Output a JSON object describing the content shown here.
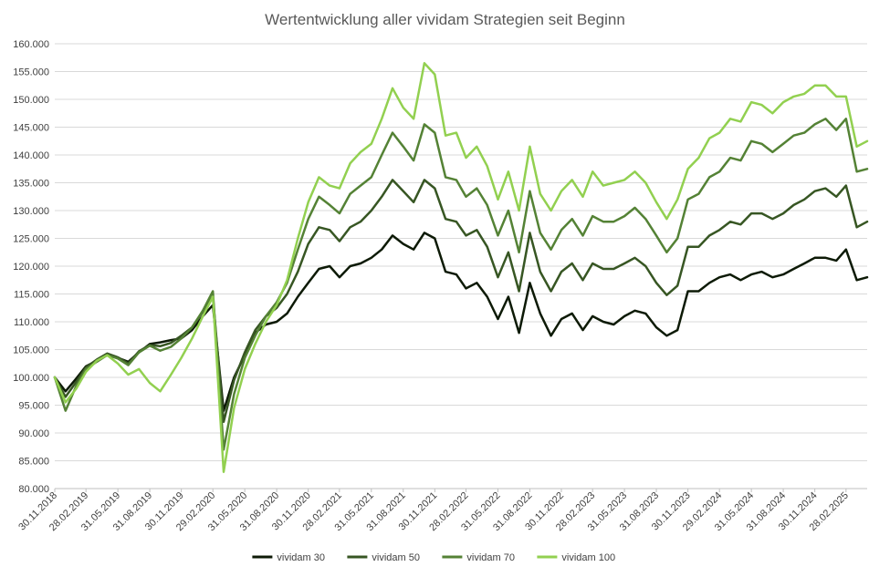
{
  "chart_data": {
    "type": "line",
    "title": "Wertentwicklung aller vividam Strategien seit Beginn",
    "xlabel": "",
    "ylabel": "",
    "ylim": [
      80000,
      160000
    ],
    "y_ticks": [
      "80.000",
      "85.000",
      "90.000",
      "95.000",
      "100.000",
      "105.000",
      "110.000",
      "115.000",
      "120.000",
      "125.000",
      "130.000",
      "135.000",
      "140.000",
      "145.000",
      "150.000",
      "155.000",
      "160.000"
    ],
    "x_ticks": [
      "30.11.2018",
      "28.02.2019",
      "31.05.2019",
      "31.08.2019",
      "30.11.2019",
      "29.02.2020",
      "31.05.2020",
      "31.08.2020",
      "30.11.2020",
      "28.02.2021",
      "31.05.2021",
      "31.08.2021",
      "30.11.2021",
      "28.02.2022",
      "31.05.2022",
      "31.08.2022",
      "30.11.2022",
      "28.02.2023",
      "31.05.2023",
      "31.08.2023",
      "30.11.2023",
      "29.02.2024",
      "31.05.2024",
      "31.08.2024",
      "30.11.2024",
      "28.02.2025"
    ],
    "x": [
      "30.11.2018",
      "31.12.2018",
      "31.01.2019",
      "28.02.2019",
      "31.03.2019",
      "30.04.2019",
      "31.05.2019",
      "30.06.2019",
      "31.07.2019",
      "31.08.2019",
      "30.09.2019",
      "31.10.2019",
      "30.11.2019",
      "31.12.2019",
      "31.01.2020",
      "29.02.2020",
      "31.03.2020",
      "30.04.2020",
      "31.05.2020",
      "30.06.2020",
      "31.07.2020",
      "31.08.2020",
      "30.09.2020",
      "31.10.2020",
      "30.11.2020",
      "31.12.2020",
      "31.01.2021",
      "28.02.2021",
      "31.03.2021",
      "30.04.2021",
      "31.05.2021",
      "30.06.2021",
      "31.07.2021",
      "31.08.2021",
      "30.09.2021",
      "31.10.2021",
      "30.11.2021",
      "31.12.2021",
      "31.01.2022",
      "28.02.2022",
      "31.03.2022",
      "30.04.2022",
      "31.05.2022",
      "30.06.2022",
      "31.07.2022",
      "31.08.2022",
      "30.09.2022",
      "31.10.2022",
      "30.11.2022",
      "31.12.2022",
      "31.01.2023",
      "28.02.2023",
      "31.03.2023",
      "30.04.2023",
      "31.05.2023",
      "30.06.2023",
      "31.07.2023",
      "31.08.2023",
      "30.09.2023",
      "31.10.2023",
      "30.11.2023",
      "31.12.2023",
      "31.01.2024",
      "29.02.2024",
      "31.03.2024",
      "30.04.2024",
      "31.05.2024",
      "30.06.2024",
      "31.07.2024",
      "31.08.2024",
      "30.09.2024",
      "31.10.2024",
      "30.11.2024",
      "31.12.2024",
      "31.01.2025",
      "28.02.2025",
      "31.03.2025",
      "30.04.2025"
    ],
    "series": [
      {
        "name": "vividam 30",
        "color": "#0d1a06",
        "values": [
          100000,
          97500,
          99800,
          102000,
          103000,
          104000,
          103500,
          102800,
          104500,
          106000,
          106300,
          106700,
          107000,
          108500,
          111000,
          113000,
          94000,
          100000,
          104000,
          108000,
          109500,
          110000,
          111500,
          114500,
          117000,
          119500,
          120000,
          118000,
          120000,
          120500,
          121500,
          123000,
          125500,
          124000,
          123000,
          126000,
          125000,
          119000,
          118500,
          116000,
          117000,
          114500,
          110500,
          114500,
          108000,
          117000,
          111500,
          107500,
          110500,
          111500,
          108500,
          111000,
          110000,
          109500,
          111000,
          112000,
          111500,
          109000,
          107500,
          108500,
          115500,
          115500,
          117000,
          118000,
          118500,
          117500,
          118500,
          119000,
          118000,
          118500,
          119500,
          120500,
          121500,
          121500,
          121000,
          123000,
          117500,
          118000
        ]
      },
      {
        "name": "vividam 50",
        "color": "#375623",
        "values": [
          100000,
          96500,
          99200,
          101800,
          103200,
          104300,
          103600,
          102500,
          104700,
          105800,
          105600,
          106200,
          107500,
          109000,
          111800,
          114500,
          92000,
          99500,
          104500,
          108500,
          111000,
          112500,
          115000,
          119000,
          124000,
          127000,
          126500,
          124500,
          127000,
          128000,
          130000,
          132500,
          135500,
          133500,
          131500,
          135500,
          134000,
          128500,
          128000,
          125500,
          126500,
          123500,
          118000,
          122500,
          115500,
          126000,
          119000,
          115500,
          119000,
          120500,
          117500,
          120500,
          119500,
          119500,
          120500,
          121500,
          120000,
          117000,
          114800,
          116500,
          123500,
          123500,
          125500,
          126500,
          128000,
          127500,
          129500,
          129500,
          128500,
          129500,
          131000,
          132000,
          133500,
          134000,
          132500,
          134500,
          127000,
          128000
        ]
      },
      {
        "name": "vividam 70",
        "color": "#548235",
        "values": [
          100000,
          94000,
          98500,
          101500,
          102800,
          104000,
          103400,
          102200,
          104500,
          105700,
          104800,
          105500,
          107000,
          109000,
          112000,
          115500,
          87000,
          97000,
          103500,
          107500,
          111000,
          113500,
          117000,
          123000,
          128500,
          132500,
          131000,
          129500,
          133000,
          134500,
          136000,
          140000,
          144000,
          141500,
          139000,
          145500,
          144000,
          136000,
          135500,
          132500,
          134000,
          131000,
          125500,
          130000,
          122500,
          133500,
          126000,
          123000,
          126500,
          128500,
          125500,
          129000,
          128000,
          128000,
          129000,
          130500,
          128500,
          125500,
          122500,
          125000,
          132000,
          133000,
          136000,
          137000,
          139500,
          139000,
          142500,
          142000,
          140500,
          142000,
          143500,
          144000,
          145500,
          146500,
          144500,
          146500,
          137000,
          137500
        ]
      },
      {
        "name": "vividam 100",
        "color": "#92d050",
        "values": [
          100000,
          95500,
          98000,
          101000,
          103000,
          104000,
          102500,
          100500,
          101500,
          99000,
          97500,
          100500,
          103500,
          107000,
          111000,
          114500,
          83000,
          94500,
          101500,
          106000,
          110000,
          113000,
          117500,
          125000,
          131500,
          136000,
          134500,
          134000,
          138500,
          140500,
          142000,
          146500,
          152000,
          148500,
          146500,
          156500,
          154500,
          143500,
          144000,
          139500,
          141500,
          138000,
          132000,
          137000,
          130000,
          141500,
          133000,
          130000,
          133500,
          135500,
          132500,
          137000,
          134500,
          135000,
          135500,
          137000,
          135000,
          131500,
          128500,
          132000,
          137500,
          139500,
          143000,
          144000,
          146500,
          146000,
          149500,
          149000,
          147500,
          149500,
          150500,
          151000,
          152500,
          152500,
          150500,
          150500,
          141500,
          142500
        ]
      }
    ],
    "grid": true,
    "legend_position": "bottom"
  },
  "legend": [
    "vividam 30",
    "vividam 50",
    "vividam 70",
    "vividam 100"
  ]
}
